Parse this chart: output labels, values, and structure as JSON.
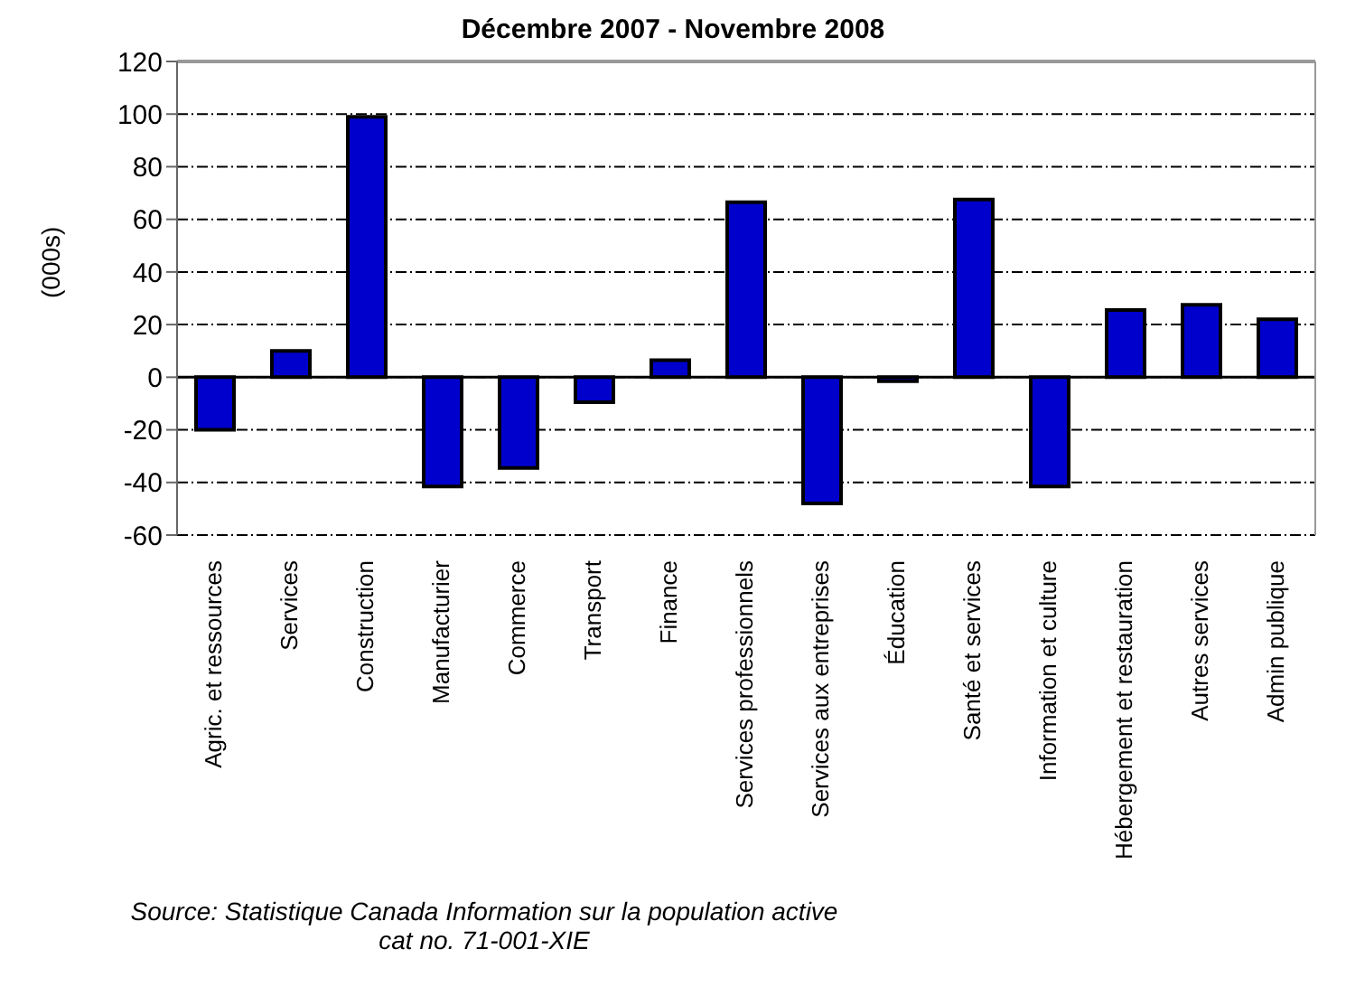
{
  "chart_data": {
    "type": "bar",
    "title": "Décembre 2007 - Novembre 2008",
    "ylabel": "(000s)",
    "categories": [
      "Agric. et ressources",
      "Services",
      "Construction",
      "Manufacturier",
      "Commerce",
      "Transport",
      "Finance",
      "Services professionnels",
      "Services aux entreprises",
      "Éducation",
      "Santé et services",
      "Information et culture",
      "Hébergement et restauration",
      "Autres services",
      "Admin publique"
    ],
    "values": [
      -20,
      10,
      99,
      -41.5,
      -34.5,
      -9.5,
      6.5,
      66.5,
      -48,
      -1.5,
      67.5,
      -41.5,
      25.5,
      27.5,
      22
    ],
    "color": "#0000cc",
    "ylim": [
      -60,
      120
    ],
    "yticks": [
      -60,
      -40,
      -20,
      0,
      20,
      40,
      60,
      80,
      100,
      120
    ],
    "grid": "y",
    "annotations": [
      "Source: Statistique Canada Information sur la population active",
      "cat no. 71-001-XIE"
    ]
  }
}
